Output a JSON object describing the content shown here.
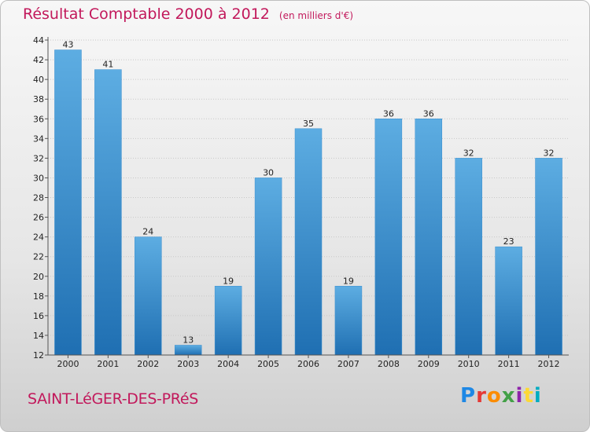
{
  "header": {
    "title": "Résultat Comptable 2000 à 2012",
    "unit": "(en milliers d'€)"
  },
  "footer": {
    "place": "SAINT-LéGER-DES-PRéS",
    "brand_letters": [
      "P",
      "r",
      "o",
      "x",
      "i",
      "t",
      "i"
    ],
    "brand_colors": [
      "#1e88e5",
      "#e53935",
      "#fb8c00",
      "#43a047",
      "#8e24aa",
      "#fdd835",
      "#00acc1"
    ]
  },
  "colors": {
    "title": "#c2185b",
    "bar_top": "#5dade2",
    "bar_bottom": "#1f6fb2"
  },
  "chart_data": {
    "type": "bar",
    "title": "Résultat Comptable 2000 à 2012",
    "subtitle": "(en milliers d'€)",
    "xlabel": "",
    "ylabel": "",
    "categories": [
      "2000",
      "2001",
      "2002",
      "2003",
      "2004",
      "2005",
      "2006",
      "2007",
      "2008",
      "2009",
      "2010",
      "2011",
      "2012"
    ],
    "values": [
      43,
      41,
      24,
      13,
      19,
      30,
      35,
      19,
      36,
      36,
      32,
      23,
      32
    ],
    "ylim": [
      12,
      44
    ],
    "yticks": [
      "12",
      "14",
      "16",
      "18",
      "20",
      "22",
      "24",
      "26",
      "28",
      "30",
      "32",
      "34",
      "36",
      "38",
      "40",
      "42",
      "44"
    ],
    "grid": true,
    "legend": "none"
  }
}
